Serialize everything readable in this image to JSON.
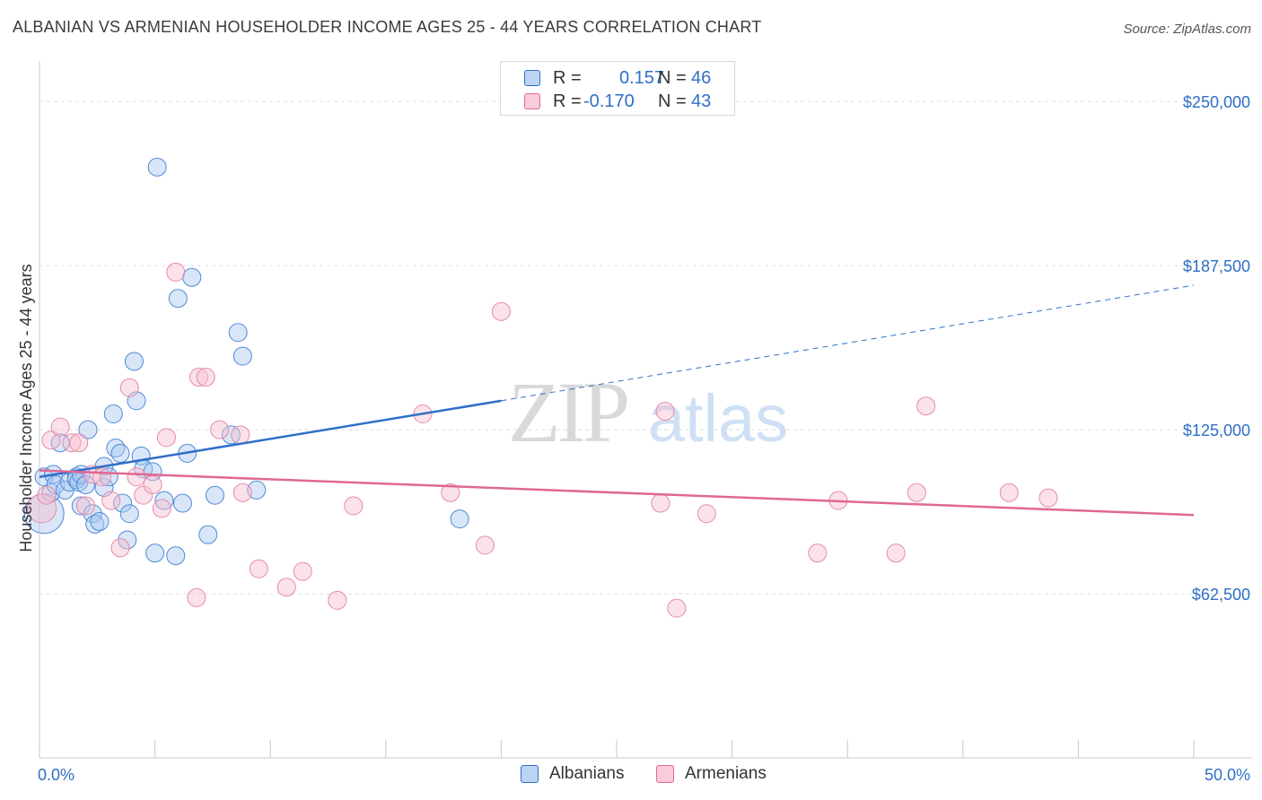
{
  "header": {
    "title": "ALBANIAN VS ARMENIAN HOUSEHOLDER INCOME AGES 25 - 44 YEARS CORRELATION CHART",
    "source": "Source: ZipAtlas.com"
  },
  "colors": {
    "blue": "#2f6fc7",
    "blue_fill": "#a9c8f0",
    "pink": "#e06893",
    "pink_fill": "#f6bfd0",
    "grid": "#dddddd",
    "tick_label": "#2f6fc7"
  },
  "legend_stats": {
    "r_label": "R =",
    "n_label": "N =",
    "albanian": {
      "r": "0.157",
      "n": "46"
    },
    "armenian": {
      "r": "-0.170",
      "n": "43"
    }
  },
  "bottom_legend": {
    "albanians": "Albanians",
    "armenians": "Armenians"
  },
  "watermark": {
    "zip": "ZIP",
    "atlas": "atlas"
  },
  "chart_data": {
    "type": "scatter",
    "title": "ALBANIAN VS ARMENIAN HOUSEHOLDER INCOME AGES 25 - 44 YEARS CORRELATION CHART",
    "xlabel": "",
    "ylabel": "Householder Income Ages 25 - 44 years",
    "xlim": [
      0,
      50
    ],
    "ylim": [
      0,
      262000
    ],
    "x_tick_labels": {
      "min": "0.0%",
      "max": "50.0%"
    },
    "y_ticks": [
      {
        "value": 62500,
        "label": "$62,500"
      },
      {
        "value": 125000,
        "label": "$125,000"
      },
      {
        "value": 187500,
        "label": "$187,500"
      },
      {
        "value": 250000,
        "label": "$250,000"
      }
    ],
    "grid": true,
    "series": [
      {
        "name": "Albanians",
        "color": "#2f6fc7",
        "trend": {
          "x0": 0,
          "y0": 107000,
          "x1": 20,
          "y1": 136000,
          "x_dash_end": 50,
          "y_dash_end": 180000
        },
        "points": [
          [
            0.2,
            93000,
            22
          ],
          [
            0.2,
            107000,
            10
          ],
          [
            0.5,
            101000,
            10
          ],
          [
            0.6,
            108000,
            10
          ],
          [
            0.7,
            104000,
            10
          ],
          [
            0.9,
            120000,
            10
          ],
          [
            1.1,
            102000,
            10
          ],
          [
            1.3,
            105000,
            10
          ],
          [
            1.6,
            107000,
            10
          ],
          [
            1.6,
            106000,
            10
          ],
          [
            1.7,
            105000,
            10
          ],
          [
            1.8,
            108000,
            10
          ],
          [
            1.8,
            96000,
            10
          ],
          [
            2.0,
            104000,
            10
          ],
          [
            2.1,
            125000,
            10
          ],
          [
            2.3,
            93000,
            10
          ],
          [
            2.4,
            89000,
            10
          ],
          [
            2.6,
            90000,
            10
          ],
          [
            2.8,
            111000,
            10
          ],
          [
            2.8,
            103000,
            10
          ],
          [
            3.0,
            107000,
            10
          ],
          [
            3.2,
            131000,
            10
          ],
          [
            3.3,
            118000,
            10
          ],
          [
            3.5,
            116000,
            10
          ],
          [
            3.6,
            97000,
            10
          ],
          [
            3.8,
            83000,
            10
          ],
          [
            3.9,
            93000,
            10
          ],
          [
            4.1,
            151000,
            10
          ],
          [
            4.2,
            136000,
            10
          ],
          [
            4.4,
            115000,
            10
          ],
          [
            4.5,
            110000,
            10
          ],
          [
            4.9,
            109000,
            10
          ],
          [
            5.0,
            78000,
            10
          ],
          [
            5.1,
            225000,
            10
          ],
          [
            5.4,
            98000,
            10
          ],
          [
            5.9,
            77000,
            10
          ],
          [
            6.0,
            175000,
            10
          ],
          [
            6.2,
            97000,
            10
          ],
          [
            6.4,
            116000,
            10
          ],
          [
            6.6,
            183000,
            10
          ],
          [
            7.3,
            85000,
            10
          ],
          [
            7.6,
            100000,
            10
          ],
          [
            8.3,
            123000,
            10
          ],
          [
            8.6,
            162000,
            10
          ],
          [
            8.8,
            153000,
            10
          ],
          [
            9.4,
            102000,
            10
          ],
          [
            18.2,
            91000,
            10
          ]
        ]
      },
      {
        "name": "Armenians",
        "color": "#e06893",
        "trend": {
          "x0": 0,
          "y0": 109500,
          "x1": 50,
          "y1": 92500
        },
        "points": [
          [
            0.1,
            95000,
            16
          ],
          [
            0.3,
            100000,
            10
          ],
          [
            0.5,
            121000,
            10
          ],
          [
            0.9,
            126000,
            10
          ],
          [
            1.4,
            120000,
            10
          ],
          [
            1.7,
            120000,
            10
          ],
          [
            2.0,
            96000,
            10
          ],
          [
            2.3,
            108000,
            10
          ],
          [
            2.7,
            107000,
            10
          ],
          [
            3.1,
            98000,
            10
          ],
          [
            3.5,
            80000,
            10
          ],
          [
            3.9,
            141000,
            10
          ],
          [
            4.2,
            107000,
            10
          ],
          [
            4.5,
            100000,
            10
          ],
          [
            4.9,
            104000,
            10
          ],
          [
            5.3,
            95000,
            10
          ],
          [
            5.5,
            122000,
            10
          ],
          [
            5.9,
            185000,
            10
          ],
          [
            6.8,
            61000,
            10
          ],
          [
            6.9,
            145000,
            10
          ],
          [
            7.2,
            145000,
            10
          ],
          [
            7.8,
            125000,
            10
          ],
          [
            8.7,
            123000,
            10
          ],
          [
            8.8,
            101000,
            10
          ],
          [
            9.5,
            72000,
            10
          ],
          [
            10.7,
            65000,
            10
          ],
          [
            11.4,
            71000,
            10
          ],
          [
            12.9,
            60000,
            10
          ],
          [
            13.6,
            96000,
            10
          ],
          [
            16.6,
            131000,
            10
          ],
          [
            17.8,
            101000,
            10
          ],
          [
            19.3,
            81000,
            10
          ],
          [
            20.0,
            170000,
            10
          ],
          [
            26.9,
            97000,
            10
          ],
          [
            27.1,
            132000,
            10
          ],
          [
            27.6,
            57000,
            10
          ],
          [
            28.9,
            93000,
            10
          ],
          [
            33.7,
            78000,
            10
          ],
          [
            34.6,
            98000,
            10
          ],
          [
            37.1,
            78000,
            10
          ],
          [
            38.0,
            101000,
            10
          ],
          [
            38.4,
            134000,
            10
          ],
          [
            42.0,
            101000,
            10
          ],
          [
            43.7,
            99000,
            10
          ]
        ]
      }
    ]
  }
}
